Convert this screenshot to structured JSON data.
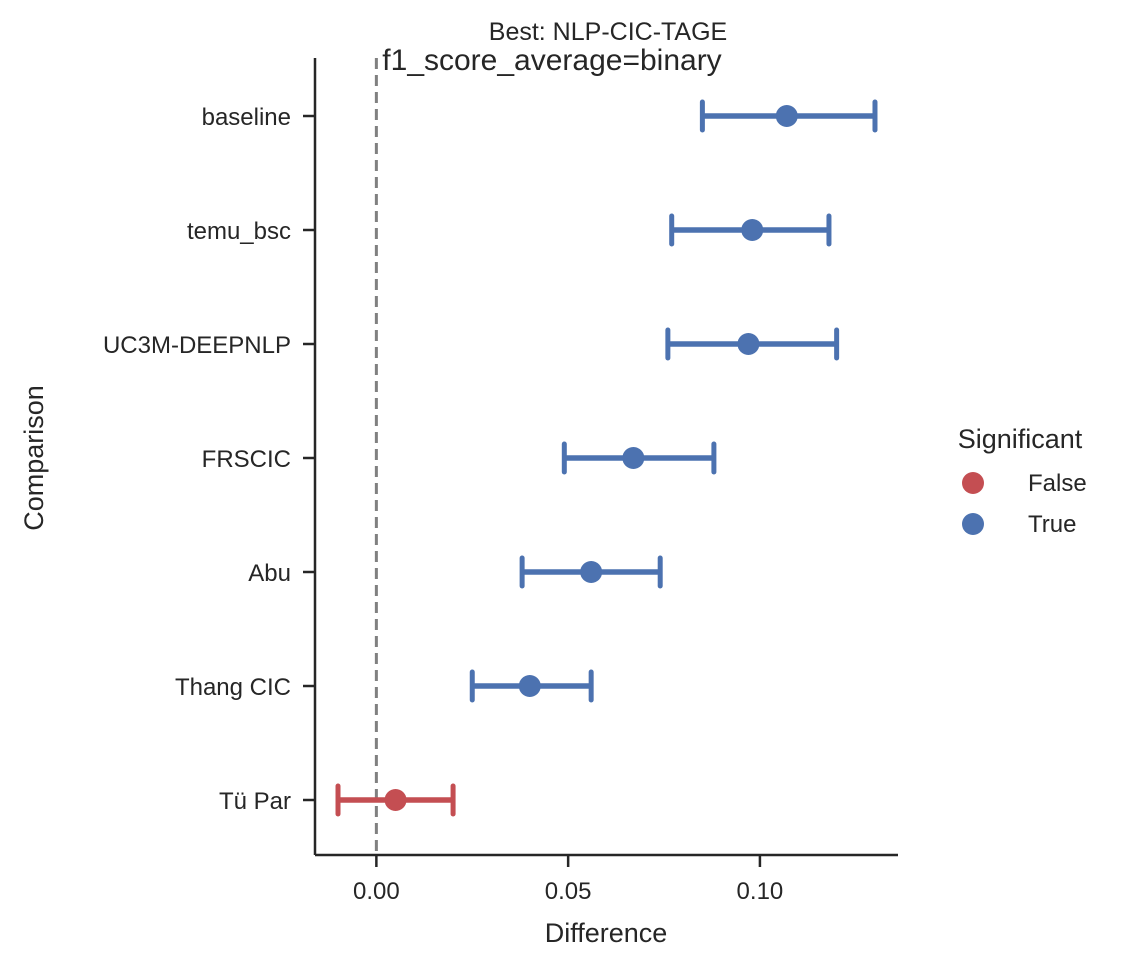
{
  "chart_data": {
    "type": "scatter",
    "title": "Best: NLP-CIC-TAGE",
    "subtitle": "f1_score_average=binary",
    "xlabel": "Difference",
    "ylabel": "Comparison",
    "xlim": [
      -0.016,
      0.136
    ],
    "x_ticks": [
      {
        "value": 0.0,
        "label": "0.00"
      },
      {
        "value": 0.05,
        "label": "0.05"
      },
      {
        "value": 0.1,
        "label": "0.10"
      }
    ],
    "reference_line": {
      "x": 0.0,
      "style": "dashed",
      "color": "#808080"
    },
    "legend": {
      "title": "Significant",
      "placement": "right",
      "entries": [
        {
          "label": "False",
          "color": "#c44e52"
        },
        {
          "label": "True",
          "color": "#4c72b0"
        }
      ]
    },
    "points": [
      {
        "category": "baseline",
        "value": 0.107,
        "ci_low": 0.085,
        "ci_high": 0.13,
        "significant": "True"
      },
      {
        "category": "temu_bsc",
        "value": 0.098,
        "ci_low": 0.077,
        "ci_high": 0.118,
        "significant": "True"
      },
      {
        "category": "UC3M-DEEPNLP",
        "value": 0.097,
        "ci_low": 0.076,
        "ci_high": 0.12,
        "significant": "True"
      },
      {
        "category": "FRSCIC",
        "value": 0.067,
        "ci_low": 0.049,
        "ci_high": 0.088,
        "significant": "True"
      },
      {
        "category": "Abu",
        "value": 0.056,
        "ci_low": 0.038,
        "ci_high": 0.074,
        "significant": "True"
      },
      {
        "category": "Thang CIC",
        "value": 0.04,
        "ci_low": 0.025,
        "ci_high": 0.056,
        "significant": "True"
      },
      {
        "category": "Tü Par",
        "value": 0.005,
        "ci_low": -0.01,
        "ci_high": 0.02,
        "significant": "False"
      }
    ]
  }
}
